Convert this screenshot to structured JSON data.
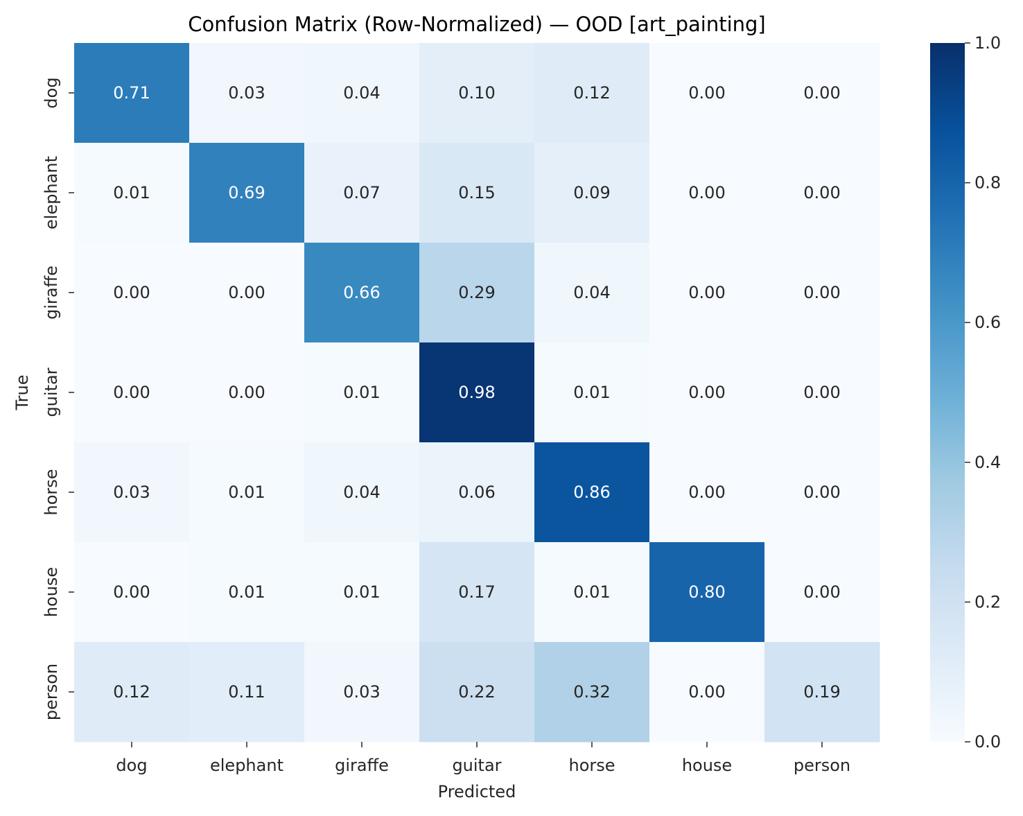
{
  "chart_data": {
    "type": "heatmap",
    "title": "Confusion Matrix (Row-Normalized) — OOD [art_painting]",
    "xlabel": "Predicted",
    "ylabel": "True",
    "x_categories": [
      "dog",
      "elephant",
      "giraffe",
      "guitar",
      "horse",
      "house",
      "person"
    ],
    "y_categories": [
      "dog",
      "elephant",
      "giraffe",
      "guitar",
      "horse",
      "house",
      "person"
    ],
    "values": [
      [
        0.71,
        0.03,
        0.04,
        0.1,
        0.12,
        0.0,
        0.0
      ],
      [
        0.01,
        0.69,
        0.07,
        0.15,
        0.09,
        0.0,
        0.0
      ],
      [
        0.0,
        0.0,
        0.66,
        0.29,
        0.04,
        0.0,
        0.0
      ],
      [
        0.0,
        0.0,
        0.01,
        0.98,
        0.01,
        0.0,
        0.0
      ],
      [
        0.03,
        0.01,
        0.04,
        0.06,
        0.86,
        0.0,
        0.0
      ],
      [
        0.0,
        0.01,
        0.01,
        0.17,
        0.01,
        0.8,
        0.0
      ],
      [
        0.12,
        0.11,
        0.03,
        0.22,
        0.32,
        0.0,
        0.19
      ]
    ],
    "value_format": "0.00",
    "colormap": "Blues",
    "color_range": [
      0.0,
      1.0
    ],
    "colorbar_ticks": [
      "0.0",
      "0.2",
      "0.4",
      "0.6",
      "0.8",
      "1.0"
    ],
    "colors": {
      "low": "#f7fbff",
      "high": "#08306b",
      "text_dark": "#262626",
      "text_light": "#ffffff"
    }
  }
}
